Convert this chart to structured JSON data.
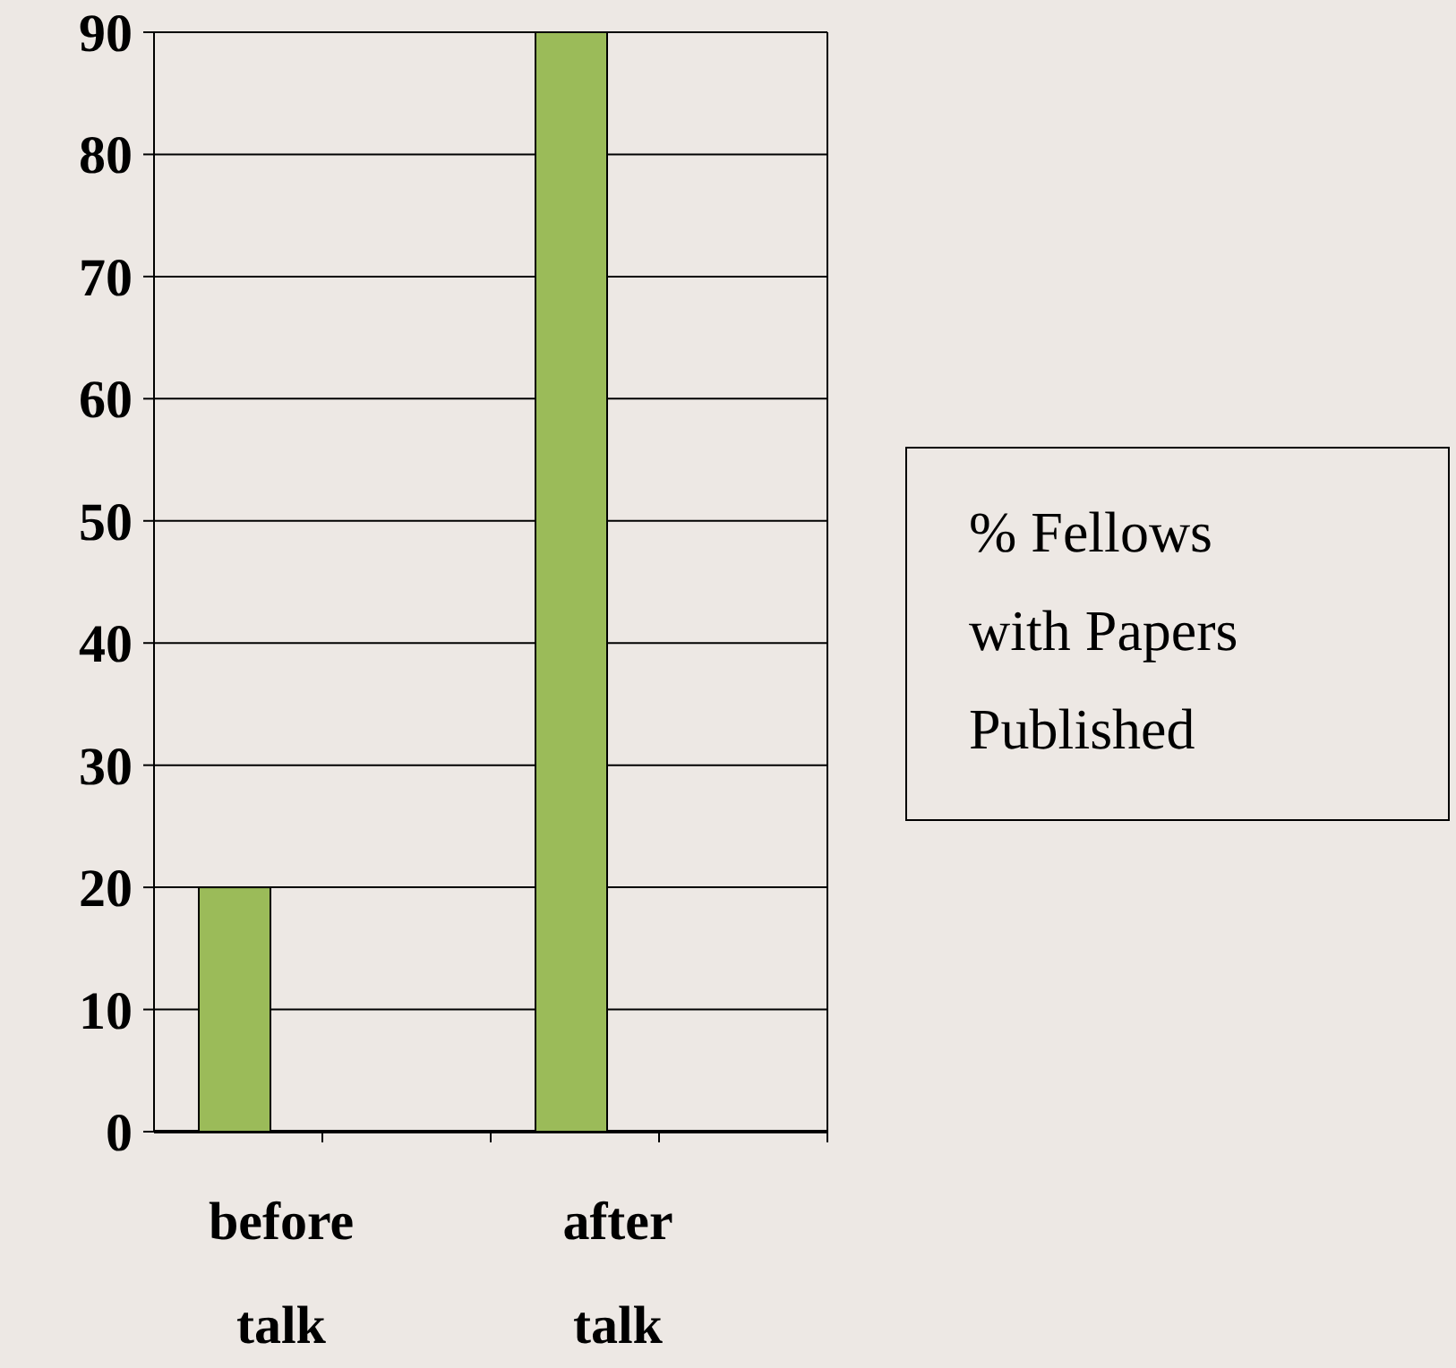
{
  "chart_data": {
    "type": "bar",
    "categories": [
      "before talk",
      null,
      "after talk",
      null
    ],
    "series": [
      {
        "color": "#9bbb59",
        "values": [
          20,
          null,
          90,
          null
        ]
      }
    ],
    "ylim": [
      0,
      90
    ],
    "yticks": [
      0,
      10,
      20,
      30,
      40,
      50,
      60,
      70,
      80,
      90
    ],
    "grid": "y",
    "annotations": [
      "% Fellows with Papers Published"
    ]
  }
}
